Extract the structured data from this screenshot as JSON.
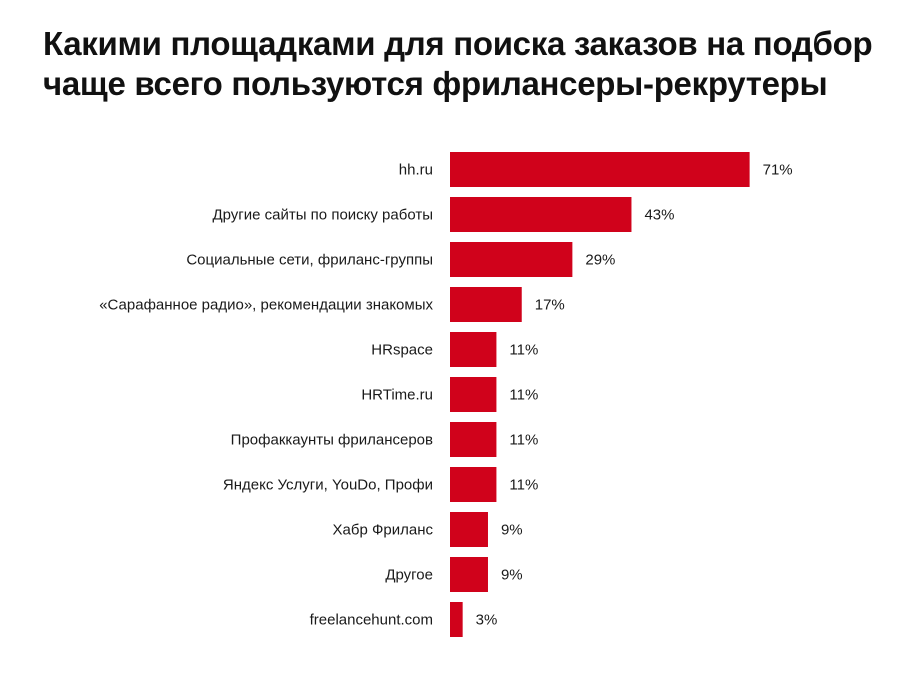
{
  "title": "Какими площадками для поиска заказов на подбор чаще всего пользуются фрилансеры-рекрутеры",
  "colors": {
    "bar": "#d0021b",
    "text": "#1a1a1a"
  },
  "chart_data": {
    "type": "bar",
    "orientation": "horizontal",
    "categories": [
      "hh.ru",
      "Другие сайты по поиску работы",
      "Социальные сети, фриланс-группы",
      "«Сарафанное радио», рекомендации знакомых",
      "HRspace",
      "HRTime.ru",
      "Профаккаунты фрилансеров",
      "Яндекс Услуги, YouDo, Профи",
      "Хабр Фриланс",
      "Другое",
      "freelancehunt.com"
    ],
    "values": [
      71,
      43,
      29,
      17,
      11,
      11,
      11,
      11,
      9,
      9,
      3
    ],
    "value_labels": [
      "71%",
      "43%",
      "29%",
      "17%",
      "11%",
      "11%",
      "11%",
      "11%",
      "9%",
      "9%",
      "3%"
    ],
    "unit": "%",
    "grid": false,
    "legend": "none"
  }
}
